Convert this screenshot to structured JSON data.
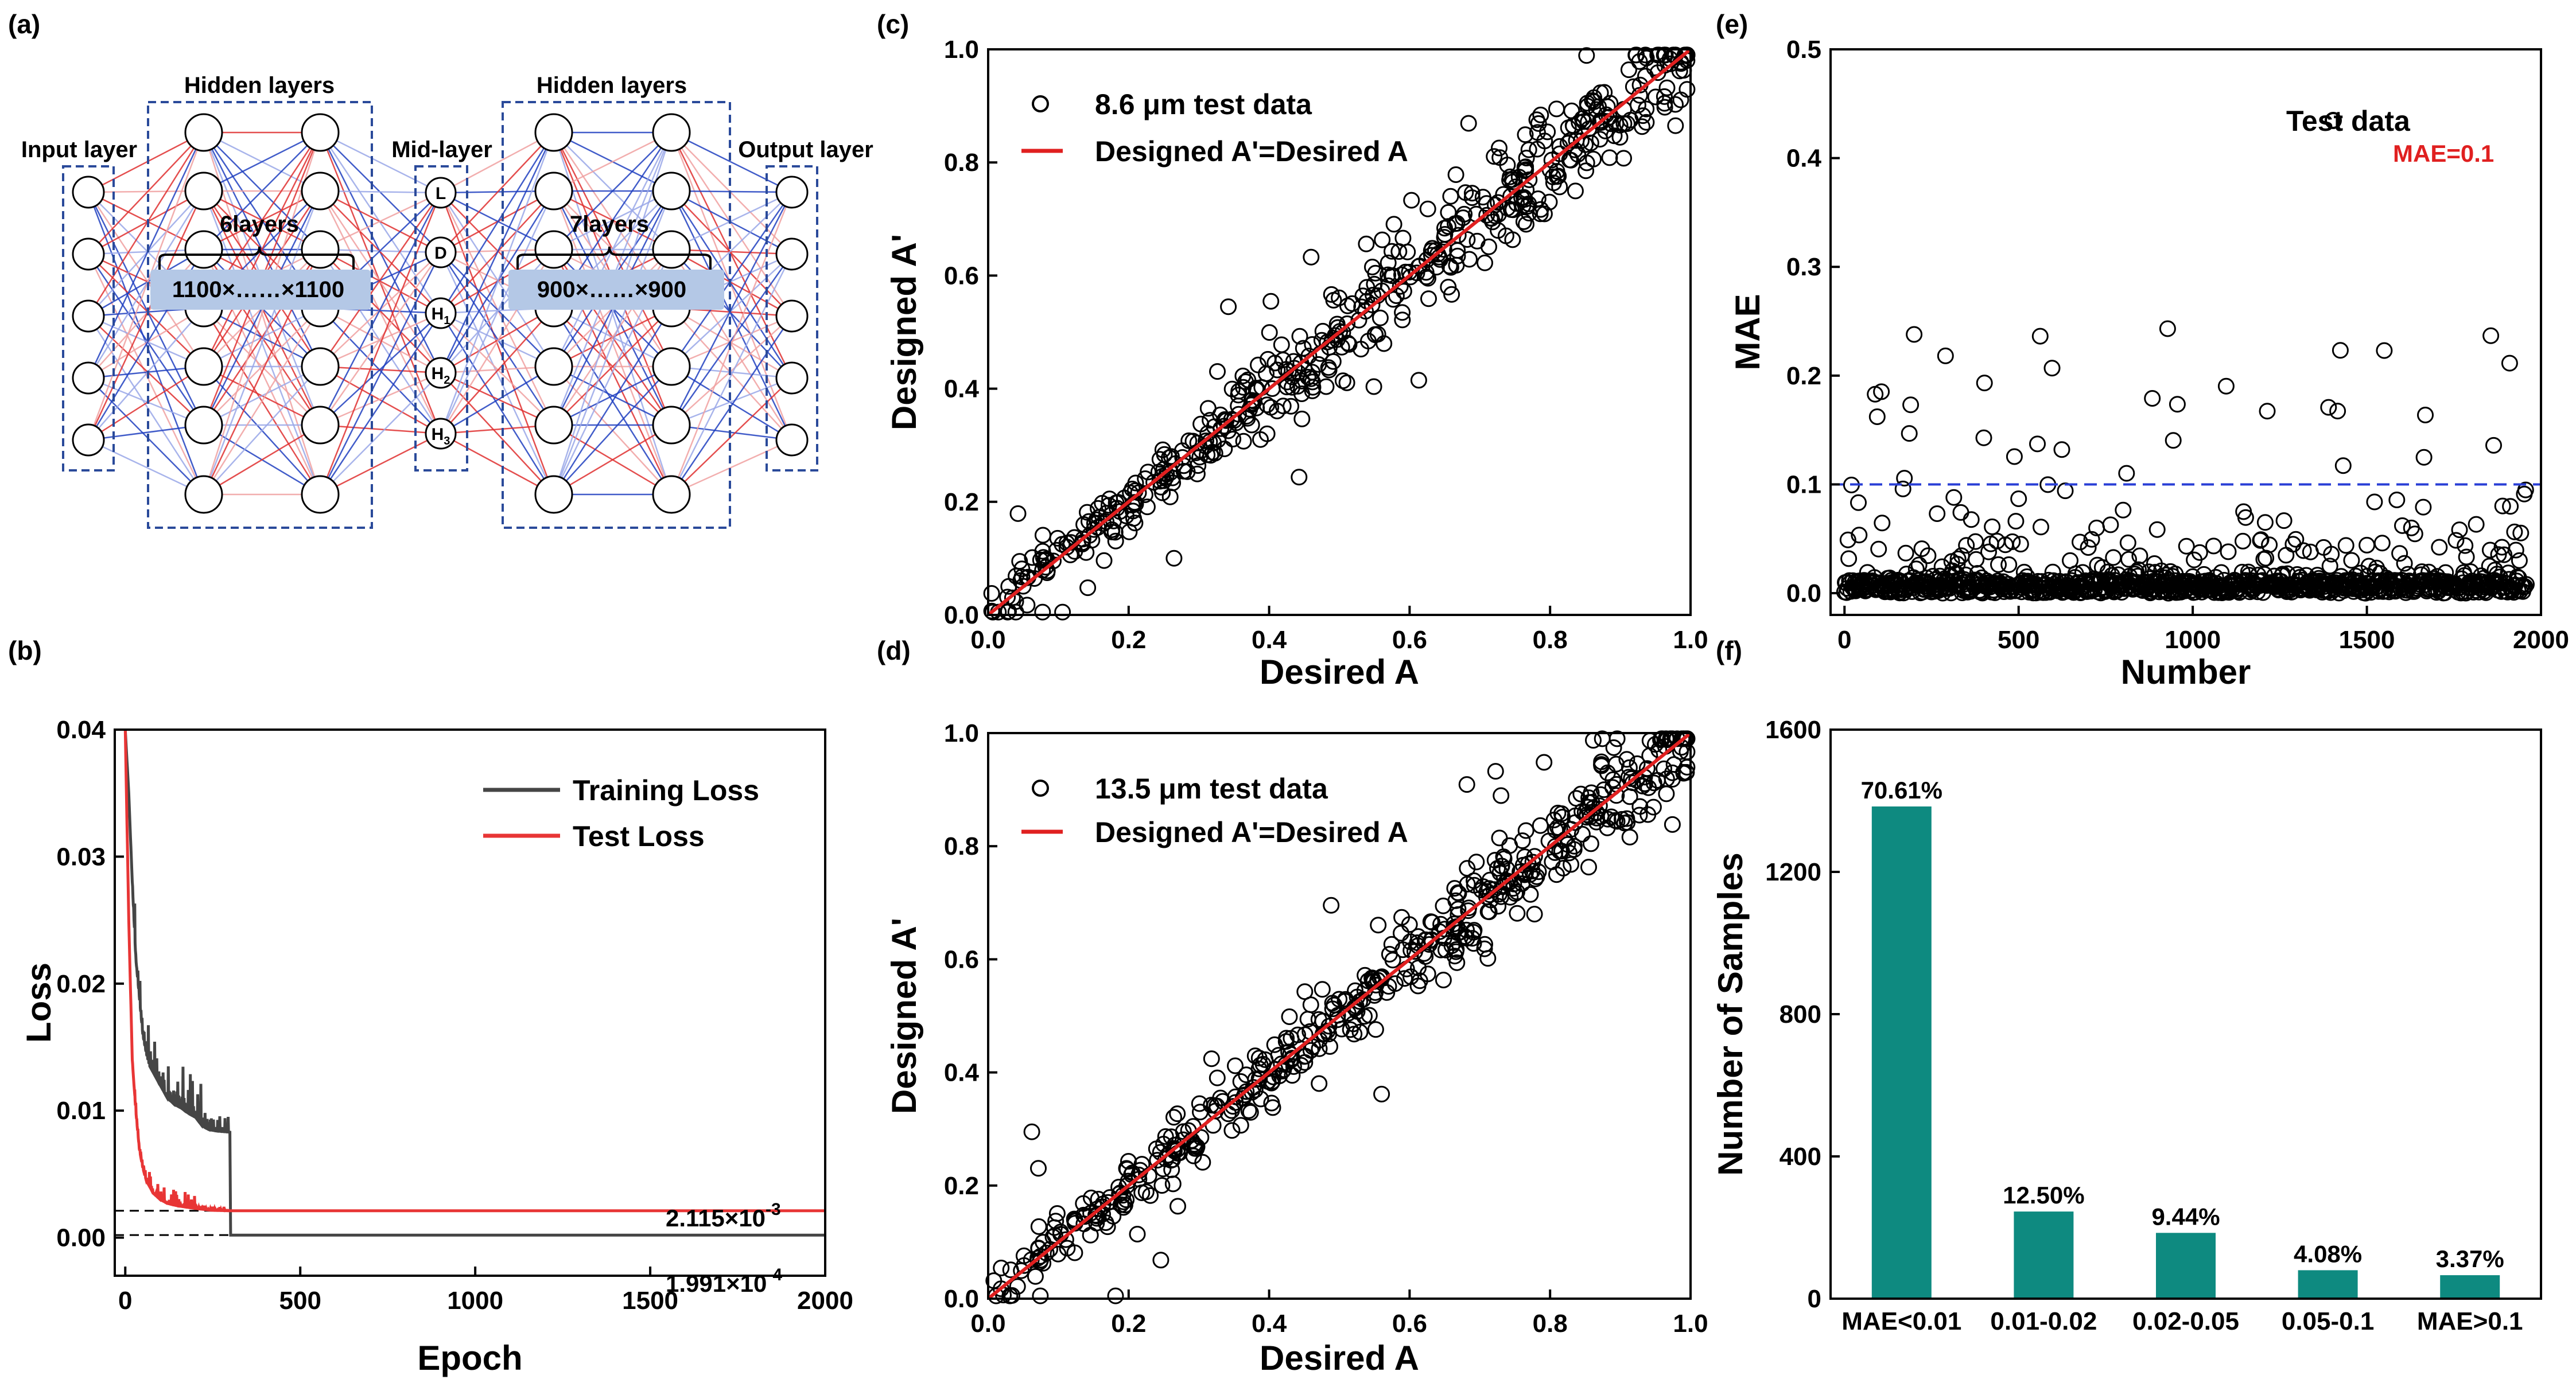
{
  "panels": {
    "a": "(a)",
    "b": "(b)",
    "c": "(c)",
    "d": "(d)",
    "e": "(e)",
    "f": "(f)"
  },
  "network": {
    "input_label": "Input layer",
    "hidden1_label": "Hidden layers",
    "mid_label": "Mid-layer",
    "hidden2_label": "Hidden layers",
    "output_label": "Output layer",
    "hidden1_count": "6layers",
    "hidden1_size": "1100×……×1100",
    "hidden2_count": "7layers",
    "hidden2_size": "900×……×900",
    "mid_nodes": [
      "L",
      "D",
      "H1",
      "H2",
      "H3"
    ],
    "colors": {
      "box": "#2a4a9a",
      "red_link": "#e03030",
      "blue_link": "#2040c0",
      "brace_fill": "#b4c8e6"
    }
  },
  "chart_data": [
    {
      "id": "b",
      "type": "line",
      "xlabel": "Epoch",
      "ylabel": "Loss",
      "xlim": [
        -30,
        2000
      ],
      "ylim": [
        -0.003,
        0.04
      ],
      "xticks": [
        "0",
        "500",
        "1000",
        "1500",
        "2000"
      ],
      "xtick_values": [
        0,
        500,
        1000,
        1500,
        2000
      ],
      "yticks": [
        "0.00",
        "0.01",
        "0.02",
        "0.03",
        "0.04"
      ],
      "ytick_values": [
        0,
        0.01,
        0.02,
        0.03,
        0.04
      ],
      "series": [
        {
          "name": "Training Loss",
          "color": "#454545",
          "x": [
            0,
            10,
            20,
            30,
            40,
            50,
            60,
            70,
            80,
            90,
            100,
            120,
            140,
            160,
            180,
            200,
            220,
            240,
            260,
            300,
            301,
            2000
          ],
          "y": [
            0.04,
            0.035,
            0.028,
            0.022,
            0.019,
            0.016,
            0.0145,
            0.0135,
            0.013,
            0.0125,
            0.012,
            0.011,
            0.0105,
            0.0102,
            0.0098,
            0.0095,
            0.0088,
            0.0085,
            0.0084,
            0.0083,
            0.0002,
            0.0002
          ]
        },
        {
          "name": "Test Loss",
          "color": "#e83535",
          "x": [
            0,
            10,
            20,
            30,
            40,
            50,
            60,
            70,
            80,
            100,
            120,
            150,
            200,
            250,
            300,
            2000
          ],
          "y": [
            0.04,
            0.025,
            0.014,
            0.01,
            0.007,
            0.0055,
            0.0045,
            0.004,
            0.0035,
            0.003,
            0.0027,
            0.0025,
            0.0023,
            0.00215,
            0.002115,
            0.002115
          ]
        }
      ],
      "reference_lines": [
        0.002115,
        0.000199
      ],
      "annotations": [
        "2.115×10",
        "-3",
        "1.991×10",
        "-4"
      ]
    },
    {
      "id": "c",
      "type": "scatter",
      "xlabel": "Desired A",
      "ylabel": "Designed A'",
      "xlim": [
        0,
        1
      ],
      "ylim": [
        0,
        1
      ],
      "xticks": [
        "0.0",
        "0.2",
        "0.4",
        "0.6",
        "0.8",
        "1.0"
      ],
      "yticks": [
        "0.0",
        "0.2",
        "0.4",
        "0.6",
        "0.8",
        "1.0"
      ],
      "tick_values": [
        0,
        0.2,
        0.4,
        0.6,
        0.8,
        1.0
      ],
      "series": [
        {
          "name": "8.6 μm test data",
          "marker": "open-circle",
          "n_points": 520,
          "spread": 0.05,
          "outliers": 0.08,
          "seed": 7
        },
        {
          "name": "Designed A'=Desired A",
          "type": "line",
          "color": "#e02020",
          "x": [
            0,
            1
          ],
          "y": [
            0,
            1
          ]
        }
      ]
    },
    {
      "id": "d",
      "type": "scatter",
      "xlabel": "Desired A",
      "ylabel": "Designed A'",
      "xlim": [
        0,
        1
      ],
      "ylim": [
        0,
        1
      ],
      "xticks": [
        "0.0",
        "0.2",
        "0.4",
        "0.6",
        "0.8",
        "1.0"
      ],
      "yticks": [
        "0.0",
        "0.2",
        "0.4",
        "0.6",
        "0.8",
        "1.0"
      ],
      "tick_values": [
        0,
        0.2,
        0.4,
        0.6,
        0.8,
        1.0
      ],
      "series": [
        {
          "name": "13.5 μm test data",
          "marker": "open-circle",
          "n_points": 520,
          "spread": 0.045,
          "outliers": 0.06,
          "seed": 19
        },
        {
          "name": "Designed A'=Desired A",
          "type": "line",
          "color": "#e02020",
          "x": [
            0,
            1
          ],
          "y": [
            0,
            1
          ]
        }
      ]
    },
    {
      "id": "e",
      "type": "scatter",
      "xlabel": "Number",
      "ylabel": "MAE",
      "xlim": [
        -40,
        2000
      ],
      "ylim": [
        -0.02,
        0.5
      ],
      "xticks": [
        "0",
        "500",
        "1000",
        "1500",
        "2000"
      ],
      "xtick_values": [
        0,
        500,
        1000,
        1500,
        2000
      ],
      "yticks": [
        "0.0",
        "0.1",
        "0.2",
        "0.3",
        "0.4",
        "0.5"
      ],
      "ytick_values": [
        0,
        0.1,
        0.2,
        0.3,
        0.4,
        0.5
      ],
      "series": [
        {
          "name": "Test data",
          "marker": "open-circle",
          "n_points": 1960,
          "seed": 31
        }
      ],
      "threshold": {
        "value": 0.1,
        "label": "MAE=0.1",
        "color": "#2a3fd6",
        "label_color": "#e02020"
      }
    },
    {
      "id": "f",
      "type": "bar",
      "xlabel": "",
      "ylabel": "Number of Samples",
      "categories": [
        "MAE<0.01",
        "0.01-0.02",
        "0.02-0.05",
        "0.05-0.1",
        "MAE>0.1"
      ],
      "values": [
        1384,
        245,
        185,
        80,
        66
      ],
      "labels": [
        "70.61%",
        "12.50%",
        "9.44%",
        "4.08%",
        "3.37%"
      ],
      "ylim": [
        0,
        1600
      ],
      "yticks": [
        "0",
        "400",
        "800",
        "1200",
        "1600"
      ],
      "ytick_values": [
        0,
        400,
        800,
        1200,
        1600
      ],
      "color": "#0e8a80"
    }
  ]
}
